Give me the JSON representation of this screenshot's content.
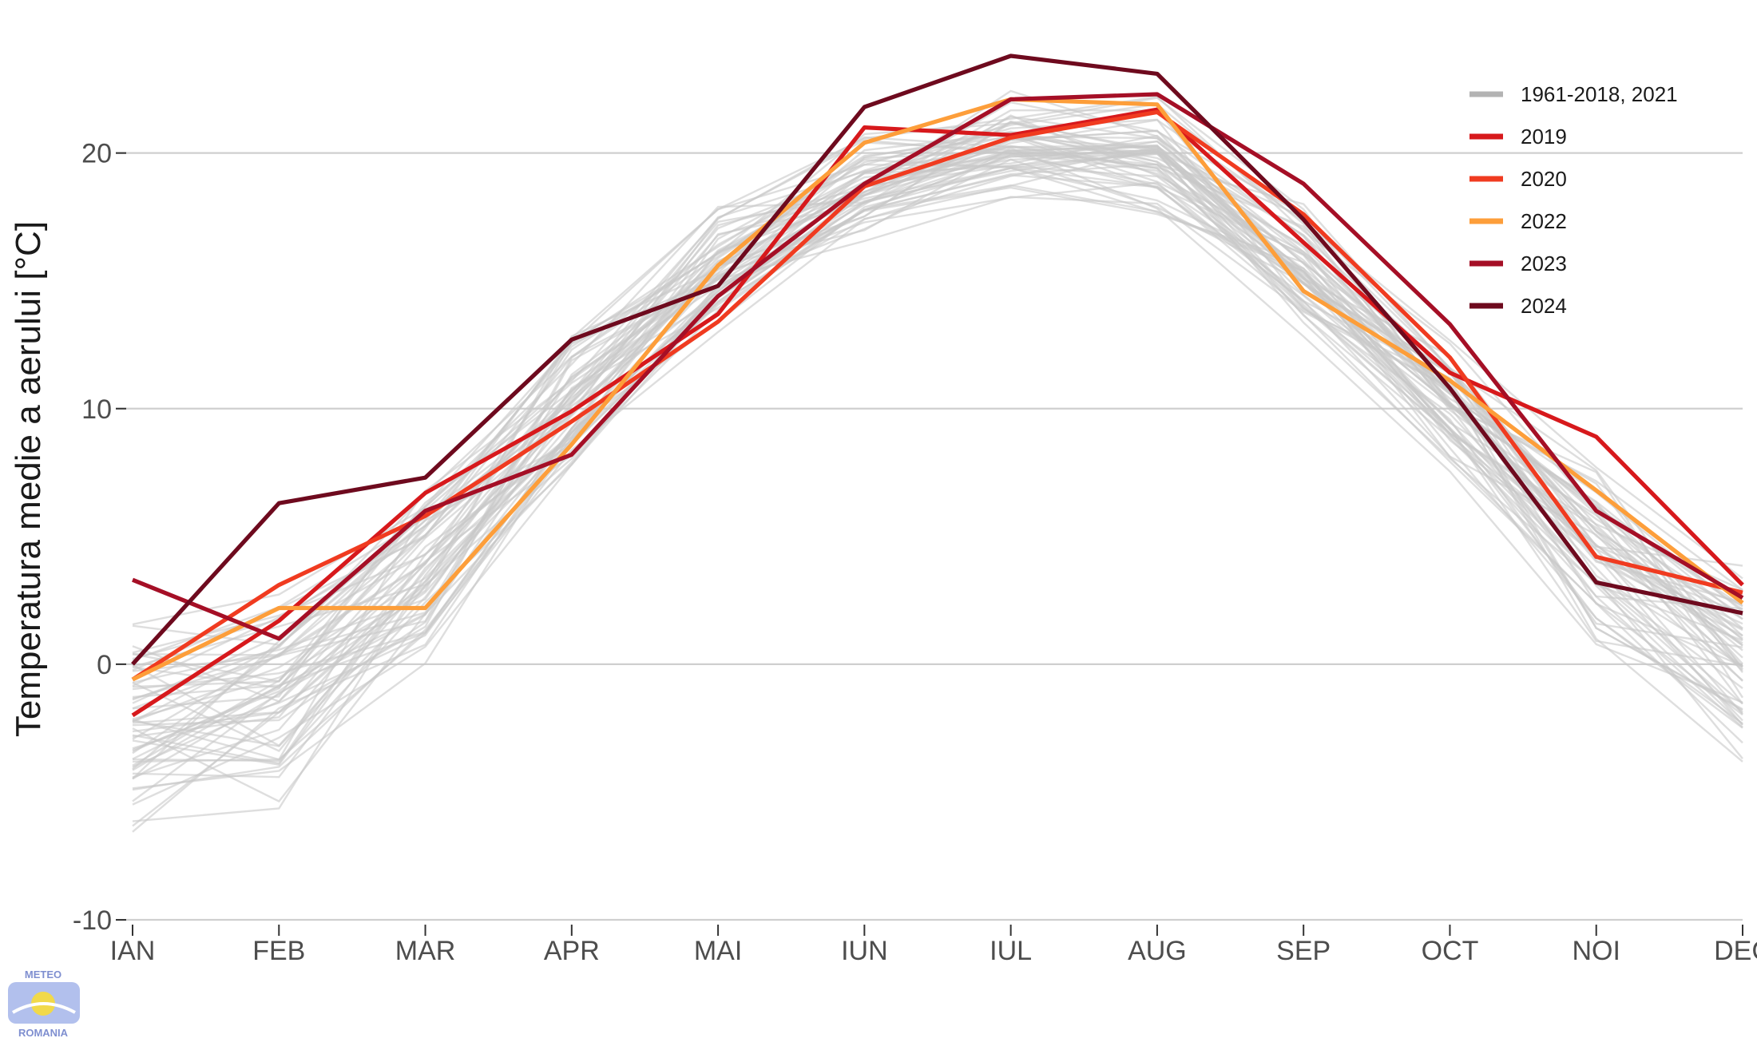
{
  "chart_data": {
    "type": "line",
    "title": "",
    "xlabel": "",
    "ylabel": "Temperatura medie a aerului [°C]",
    "x": [
      "IAN",
      "FEB",
      "MAR",
      "APR",
      "MAI",
      "IUN",
      "IUL",
      "AUG",
      "SEP",
      "OCT",
      "NOI",
      "DEC"
    ],
    "ylim": [
      -10,
      23.8
    ],
    "yticks": [
      -10,
      0,
      10,
      20
    ],
    "grid": "horizontal",
    "legend_position": "top-right",
    "series": [
      {
        "name": "1961-2018, 2021",
        "color": "#b3b3b3",
        "values": [
          -2.5,
          -0.9,
          3.8,
          10.5,
          15.6,
          18.6,
          20.3,
          19.8,
          15.4,
          10.2,
          4.6,
          0.2
        ]
      },
      {
        "name": "2019",
        "color": "#d7191c",
        "values": [
          -2.0,
          1.7,
          6.7,
          9.9,
          13.7,
          21.0,
          20.7,
          21.7,
          16.5,
          11.4,
          8.9,
          3.1
        ]
      },
      {
        "name": "2020",
        "color": "#f03b20",
        "values": [
          -0.6,
          3.1,
          5.8,
          9.5,
          13.4,
          18.7,
          20.6,
          21.6,
          17.6,
          12.0,
          4.2,
          2.8
        ]
      },
      {
        "name": "2022",
        "color": "#fd9e3a",
        "values": [
          -0.6,
          2.2,
          2.2,
          8.6,
          15.6,
          20.4,
          22.1,
          21.9,
          14.6,
          11.1,
          6.8,
          2.4
        ]
      },
      {
        "name": "2023",
        "color": "#a50f26",
        "values": [
          3.3,
          1.0,
          6.0,
          8.2,
          14.4,
          18.8,
          22.1,
          22.3,
          18.8,
          13.3,
          6.0,
          2.6
        ]
      },
      {
        "name": "2024",
        "color": "#6e0a1e",
        "values": [
          0.0,
          6.3,
          7.3,
          12.7,
          14.8,
          21.8,
          23.8,
          23.1,
          17.4,
          10.8,
          3.2,
          2.0
        ]
      }
    ]
  },
  "logo": {
    "top_text": "METEO",
    "bottom_text": "ROMANIA"
  }
}
